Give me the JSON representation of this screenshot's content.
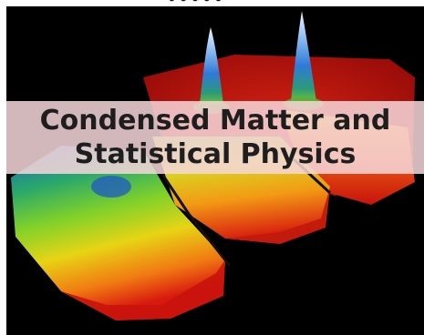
{
  "banner": {
    "line1": "Condensed Matter and",
    "line2": "Statistical Physics"
  },
  "image": {
    "subject": "bose-einstein-condensate-density-peaks"
  }
}
